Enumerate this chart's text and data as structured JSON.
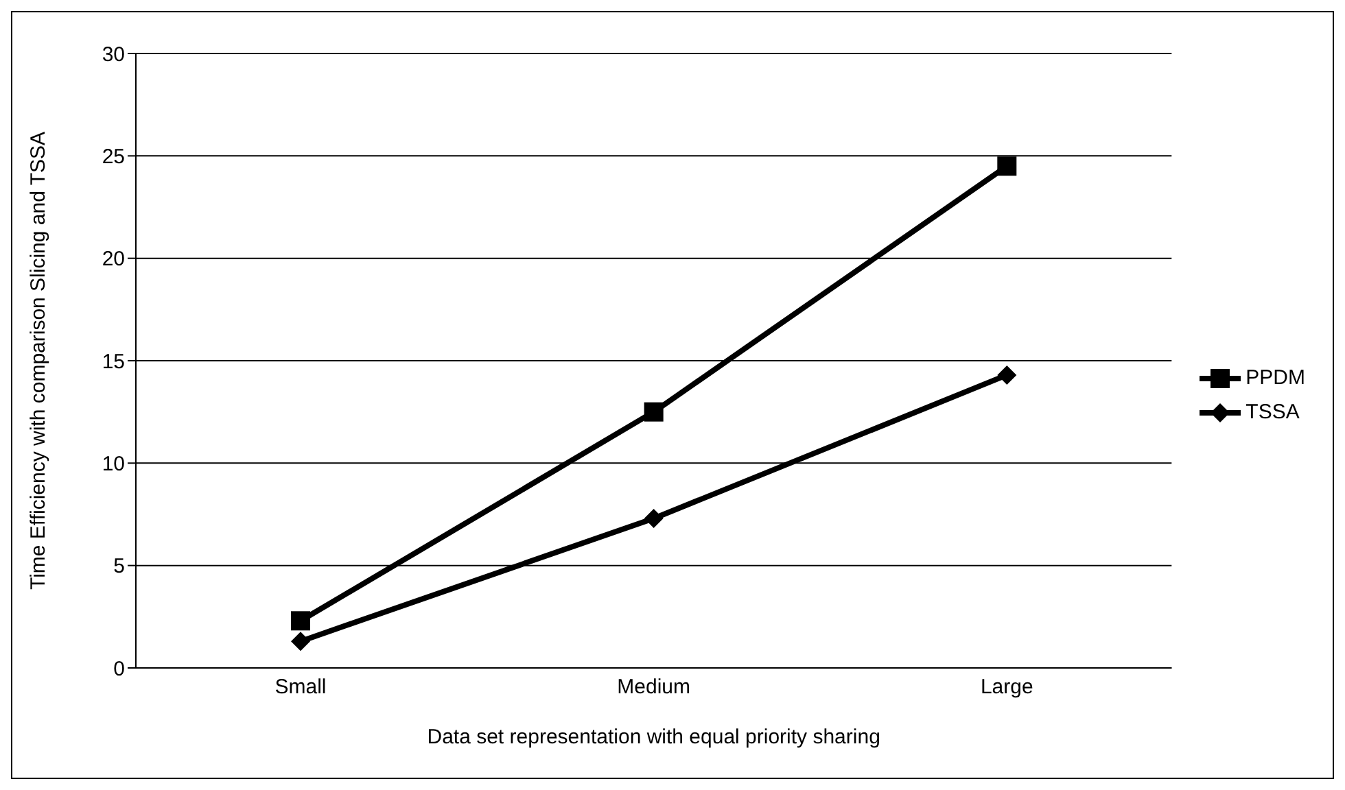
{
  "chart_data": {
    "type": "line",
    "xlabel": "Data set representation with equal priority sharing",
    "ylabel": "Time Efficiency with comparison Slicing and TSSA",
    "categories": [
      "Small",
      "Medium",
      "Large"
    ],
    "series": [
      {
        "name": "PPDM",
        "color": "#000000",
        "marker": "square",
        "values": [
          2.3,
          12.5,
          24.5
        ]
      },
      {
        "name": "TSSA",
        "color": "#000000",
        "marker": "diamond",
        "values": [
          1.3,
          7.3,
          14.3
        ]
      }
    ],
    "ylim": [
      0,
      30
    ],
    "yticks": [
      0,
      5,
      10,
      15,
      20,
      25,
      30
    ],
    "grid": "y",
    "legend": "right",
    "line_style": "solid"
  }
}
